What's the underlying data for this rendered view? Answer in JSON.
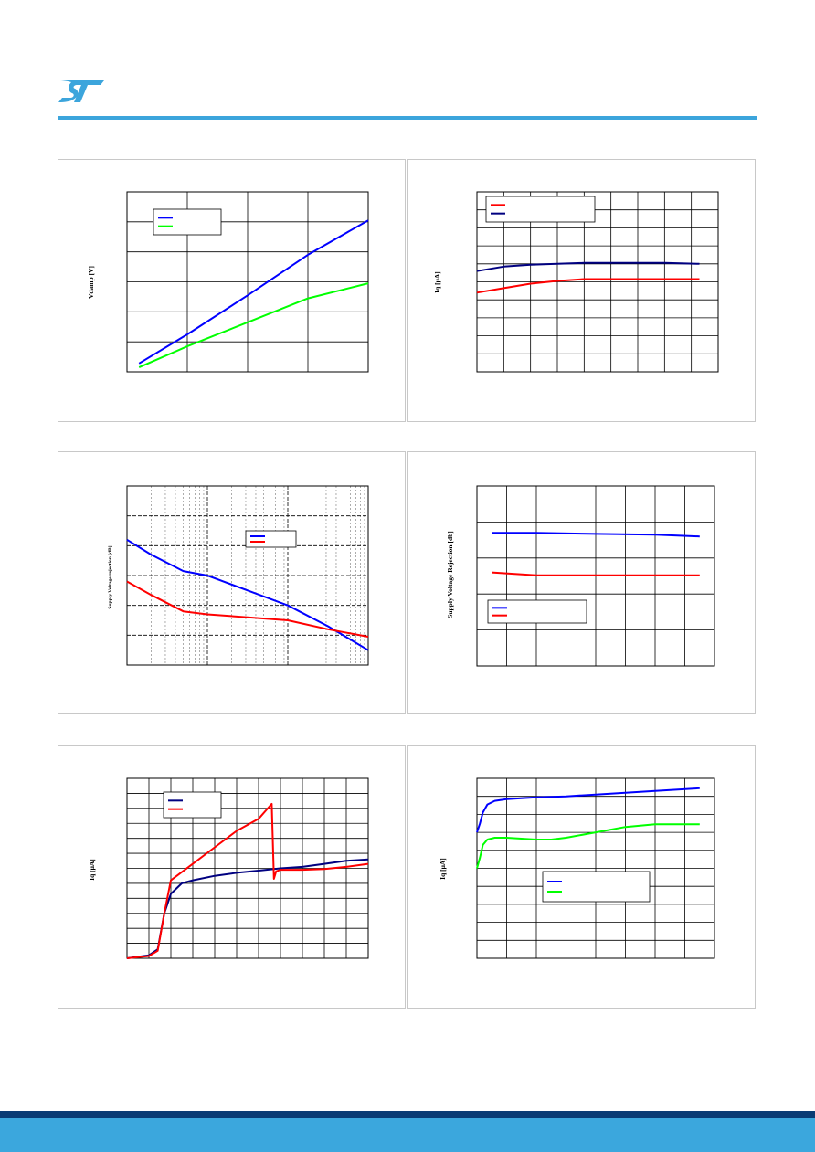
{
  "brand": {
    "logo_name": "st-logo",
    "accent_color": "#3ca5dc",
    "footer_dark": "#0a3b74",
    "footer_color": "#3ba7dd"
  },
  "chart_data": [
    {
      "id": "c1",
      "type": "line",
      "ylabel": "Vdamp [V]",
      "xlabel": "",
      "xlim": [
        0,
        4
      ],
      "ylim": [
        0,
        6
      ],
      "xgrid": [
        0,
        1,
        2,
        3,
        4
      ],
      "ygrid": [
        0,
        1,
        2,
        3,
        4,
        5,
        6
      ],
      "minor_x": [],
      "xlog": false,
      "legend": {
        "position": "top-left",
        "entries": 2
      },
      "series": [
        {
          "name": "",
          "color": "#0000ff",
          "x": [
            0.2,
            1,
            2,
            3,
            4
          ],
          "y": [
            0.28,
            1.25,
            2.55,
            3.9,
            5.05
          ]
        },
        {
          "name": "",
          "color": "#00ff00",
          "x": [
            0.2,
            1,
            2,
            3,
            4
          ],
          "y": [
            0.15,
            0.85,
            1.65,
            2.45,
            2.95
          ]
        }
      ]
    },
    {
      "id": "c2",
      "type": "line",
      "ylabel": "Iq [μA]",
      "xlabel": "",
      "xlim": [
        0,
        9
      ],
      "ylim": [
        0,
        10
      ],
      "xgrid": [
        0,
        1,
        2,
        3,
        4,
        5,
        6,
        7,
        8,
        9
      ],
      "ygrid": [
        0,
        1,
        2,
        3,
        4,
        5,
        6,
        7,
        8,
        9,
        10
      ],
      "minor_x": [],
      "xlog": false,
      "legend": {
        "position": "top-left",
        "entries": 2
      },
      "series": [
        {
          "name": "",
          "color": "#ff0000",
          "x": [
            0,
            1,
            2,
            3,
            4,
            5,
            6,
            7,
            8.3
          ],
          "y": [
            4.4,
            4.65,
            4.9,
            5.05,
            5.15,
            5.15,
            5.15,
            5.15,
            5.15
          ]
        },
        {
          "name": "",
          "color": "#000080",
          "x": [
            0,
            1,
            2,
            3,
            4,
            5,
            6,
            7,
            8.3
          ],
          "y": [
            5.6,
            5.85,
            5.95,
            6.0,
            6.05,
            6.05,
            6.05,
            6.05,
            6.0
          ]
        }
      ]
    },
    {
      "id": "c3",
      "type": "line",
      "ylabel": "Supply Voltage rejection [dB]",
      "xlabel": "",
      "xlim": [
        0,
        3
      ],
      "ylim": [
        0,
        6
      ],
      "xgrid": [
        0,
        1,
        2,
        3
      ],
      "ygrid": [
        0,
        1,
        2,
        3,
        4,
        5,
        6
      ],
      "minor_x": [
        0.301,
        0.477,
        0.602,
        0.699,
        0.778,
        0.845,
        0.903,
        0.954,
        1.301,
        1.477,
        1.602,
        1.699,
        1.778,
        1.845,
        1.903,
        1.954,
        2.301,
        2.477,
        2.602,
        2.699,
        2.778,
        2.845,
        2.903,
        2.954
      ],
      "xlog": true,
      "legend": {
        "position": "top-right",
        "entries": 2
      },
      "series": [
        {
          "name": "",
          "color": "#0000ff",
          "x": [
            0,
            0.3,
            0.7,
            1,
            1.5,
            2,
            2.5,
            3
          ],
          "y": [
            4.2,
            3.7,
            3.15,
            3.0,
            2.5,
            2.0,
            1.3,
            0.5
          ]
        },
        {
          "name": "",
          "color": "#ff0000",
          "x": [
            0,
            0.3,
            0.7,
            1,
            1.5,
            2,
            2.5,
            3
          ],
          "y": [
            2.8,
            2.35,
            1.8,
            1.7,
            1.6,
            1.5,
            1.2,
            0.95
          ]
        }
      ]
    },
    {
      "id": "c4",
      "type": "line",
      "ylabel": "Supply Voltage Rejection [db]",
      "xlabel": "",
      "xlim": [
        0,
        8
      ],
      "ylim": [
        0,
        5
      ],
      "xgrid": [
        0,
        1,
        2,
        3,
        4,
        5,
        6,
        7,
        8
      ],
      "ygrid": [
        0,
        1,
        2,
        3,
        4,
        5
      ],
      "minor_x": [],
      "xlog": false,
      "legend": {
        "position": "center-left",
        "entries": 2
      },
      "series": [
        {
          "name": "",
          "color": "#0000ff",
          "x": [
            0.5,
            2,
            4,
            6,
            7.5
          ],
          "y": [
            3.7,
            3.7,
            3.67,
            3.65,
            3.6
          ]
        },
        {
          "name": "",
          "color": "#ff0000",
          "x": [
            0.5,
            2,
            4,
            6,
            7.5
          ],
          "y": [
            2.6,
            2.52,
            2.52,
            2.52,
            2.52
          ]
        }
      ]
    },
    {
      "id": "c5",
      "type": "line",
      "ylabel": "Iq [μA]",
      "xlabel": "",
      "xlim": [
        0,
        11
      ],
      "ylim": [
        0,
        12
      ],
      "xgrid": [
        0,
        1,
        2,
        3,
        4,
        5,
        6,
        7,
        8,
        9,
        10,
        11
      ],
      "ygrid": [
        0,
        1,
        2,
        3,
        4,
        5,
        6,
        7,
        8,
        9,
        10,
        11,
        12
      ],
      "minor_x": [],
      "xlog": false,
      "legend": {
        "position": "top-left",
        "entries": 2
      },
      "series": [
        {
          "name": "",
          "color": "#000080",
          "x": [
            0,
            1,
            1.4,
            1.7,
            2,
            2.5,
            3,
            4,
            5,
            6,
            7,
            8,
            9,
            10,
            11
          ],
          "y": [
            0,
            0.2,
            0.6,
            3,
            4.3,
            5,
            5.2,
            5.5,
            5.7,
            5.85,
            6.0,
            6.1,
            6.3,
            6.5,
            6.6
          ]
        },
        {
          "name": "",
          "color": "#ff0000",
          "x": [
            0,
            1,
            1.4,
            1.7,
            2,
            3,
            4,
            5,
            6,
            6.6,
            6.7,
            6.8,
            7,
            8,
            9,
            10,
            11
          ],
          "y": [
            0,
            0.15,
            0.5,
            3,
            5.2,
            6.3,
            7.4,
            8.5,
            9.3,
            10.3,
            5.3,
            5.8,
            5.9,
            5.9,
            5.95,
            6.1,
            6.3
          ]
        }
      ]
    },
    {
      "id": "c6",
      "type": "line",
      "ylabel": "Iq [μA]",
      "xlabel": "",
      "xlim": [
        0,
        8
      ],
      "ylim": [
        0,
        10
      ],
      "xgrid": [
        0,
        1,
        2,
        3,
        4,
        5,
        6,
        7,
        8
      ],
      "ygrid": [
        0,
        1,
        2,
        3,
        4,
        5,
        6,
        7,
        8,
        9,
        10
      ],
      "minor_x": [],
      "xlog": false,
      "legend": {
        "position": "center",
        "entries": 2
      },
      "series": [
        {
          "name": "",
          "color": "#0000ff",
          "x": [
            0,
            0.1,
            0.2,
            0.35,
            0.6,
            1,
            2,
            3,
            4,
            5,
            6,
            7.5
          ],
          "y": [
            7.0,
            7.5,
            8.1,
            8.55,
            8.75,
            8.85,
            8.95,
            9.0,
            9.1,
            9.2,
            9.3,
            9.45
          ]
        },
        {
          "name": "",
          "color": "#00ff00",
          "x": [
            0,
            0.1,
            0.2,
            0.35,
            0.6,
            1,
            2,
            2.5,
            3,
            4,
            5,
            6,
            7.5
          ],
          "y": [
            5.0,
            5.6,
            6.3,
            6.6,
            6.7,
            6.7,
            6.6,
            6.6,
            6.7,
            7.0,
            7.3,
            7.45,
            7.45
          ]
        }
      ]
    }
  ]
}
